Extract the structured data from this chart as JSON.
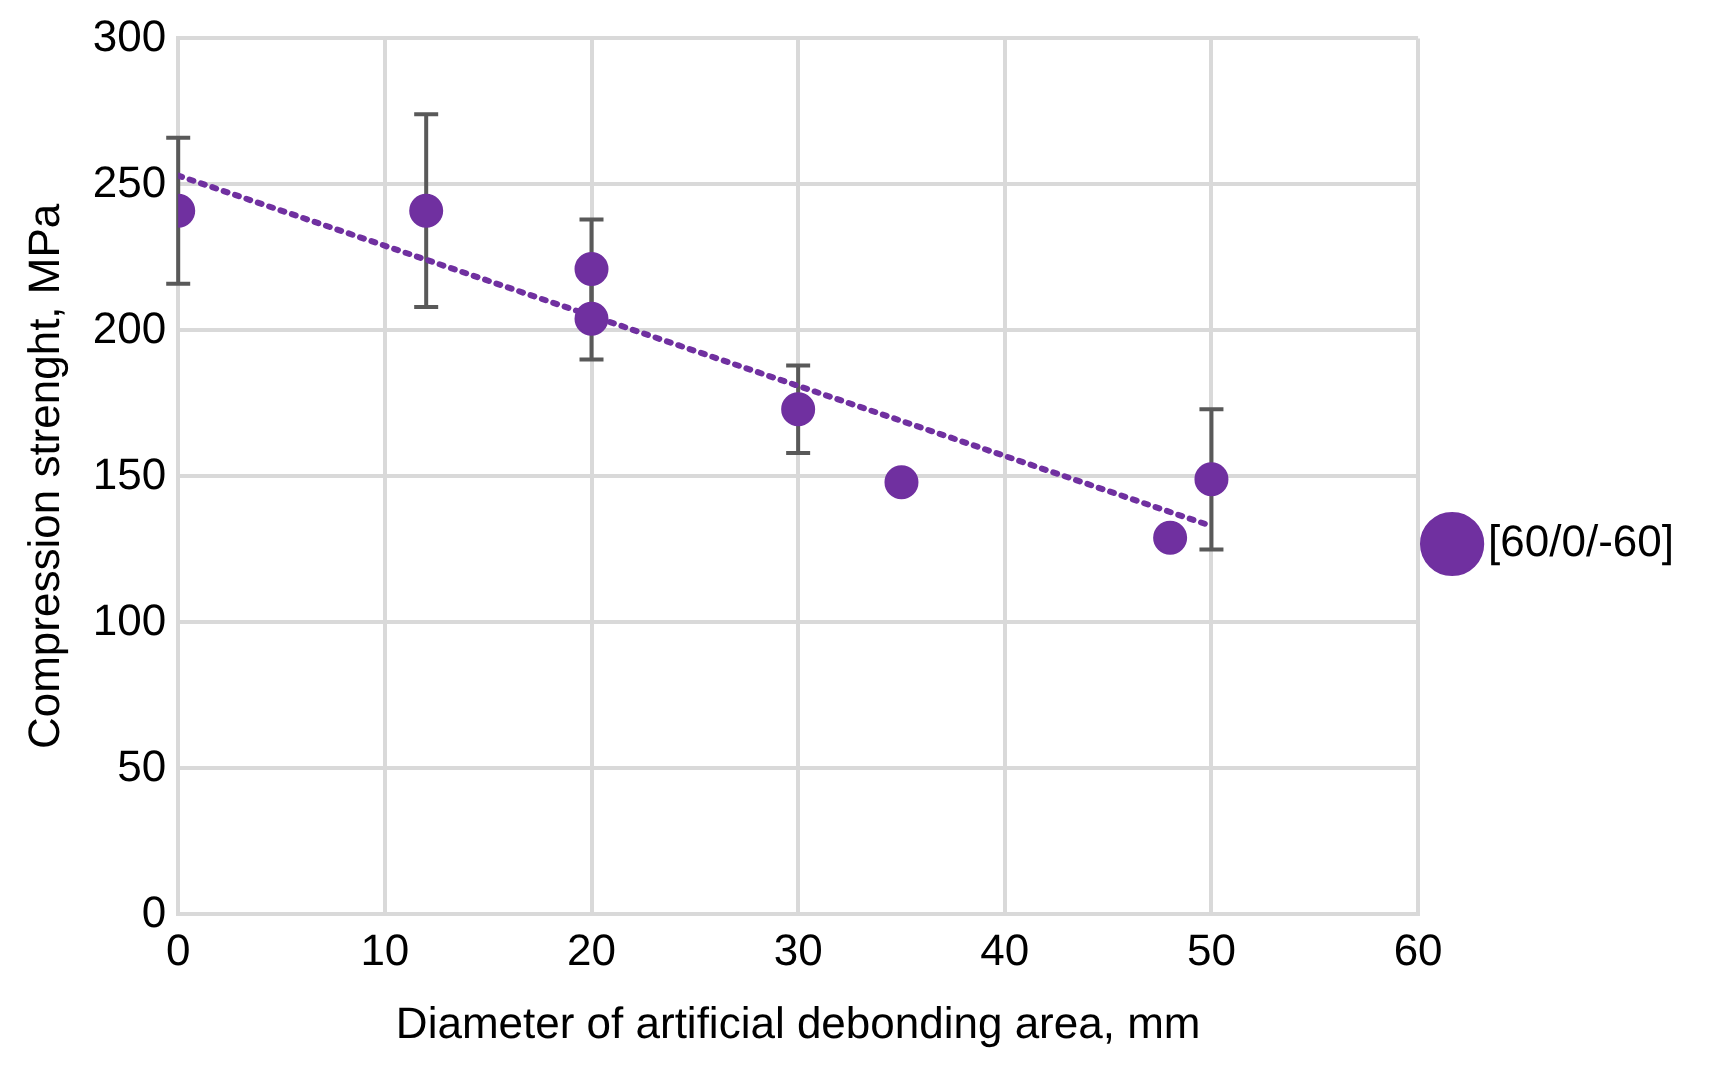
{
  "chart_data": {
    "type": "scatter",
    "xlabel": "Diameter of artificial debonding area, mm",
    "ylabel": "Compression strenght, MPa",
    "xlim": [
      0,
      60
    ],
    "xticks": [
      0,
      10,
      20,
      30,
      40,
      50,
      60
    ],
    "ylim": [
      0,
      300
    ],
    "yticks": [
      0,
      50,
      100,
      150,
      200,
      250,
      300
    ],
    "grid": true,
    "legend": "right",
    "marker": "circle",
    "series": [
      {
        "name": "[60/0/-60]",
        "color": "#7030a0",
        "x": [
          0,
          12,
          20,
          20,
          30,
          35,
          48,
          50
        ],
        "values": [
          241,
          241,
          221,
          204,
          173,
          148,
          129,
          149
        ],
        "errors": [
          25,
          33,
          17,
          14,
          15,
          null,
          null,
          24
        ]
      },
      {
        "type": "line",
        "color": "#7030a0",
        "line_style": "dotted",
        "marker": "none",
        "x": [
          0,
          50
        ],
        "values": [
          253,
          133
        ]
      }
    ]
  }
}
